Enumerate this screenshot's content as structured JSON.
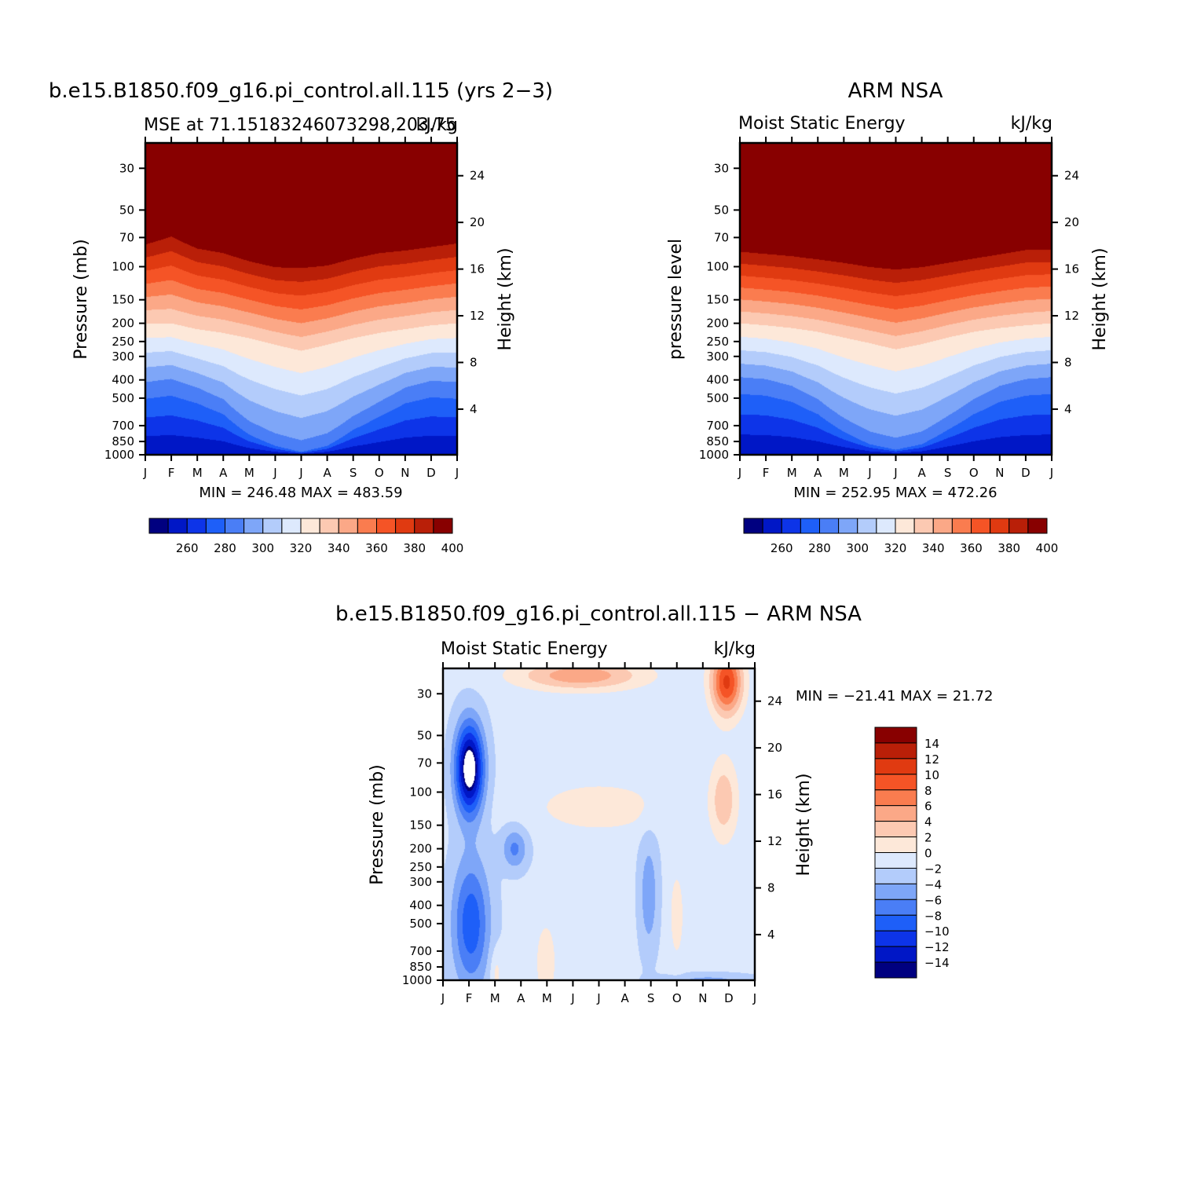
{
  "palette": {
    "full": [
      "#000080",
      "#0017c6",
      "#0d34e8",
      "#1e5ff8",
      "#4a7ef6",
      "#7ea6f8",
      "#b3ccfb",
      "#dde9fd",
      "#fde8d9",
      "#fcc9b2",
      "#fba887",
      "#fa7c4f",
      "#f55426",
      "#e03a11",
      "#b91f08",
      "#880000"
    ]
  },
  "months": [
    "J",
    "F",
    "M",
    "A",
    "M",
    "J",
    "J",
    "A",
    "S",
    "O",
    "N",
    "D",
    "J"
  ],
  "pressure_ticks": [
    "30",
    "50",
    "70",
    "100",
    "150",
    "200",
    "250",
    "300",
    "400",
    "500",
    "700",
    "850",
    "1000"
  ],
  "height_ticks": [
    "24",
    "20",
    "16",
    "12",
    "8",
    "4"
  ],
  "chart_data": [
    {
      "id": "model",
      "type": "heatmap",
      "title": "b.e15.B1850.f09_g16.pi_control.all.115 (yrs 2−3)",
      "subtitle_left": "MSE at 71.15183246073298,203.75",
      "subtitle_right": "kJ/kg",
      "ylabel_left": "Pressure (mb)",
      "ylabel_right": "Height (km)",
      "stats": "MIN =  246.48  MAX =  483.59",
      "colorbar_labels": [
        "260",
        "280",
        "300",
        "320",
        "340",
        "360",
        "380",
        "400"
      ],
      "levels_start": 250,
      "levels_step": 10,
      "upper_boundary_hPa": [
        65,
        58,
        68,
        72,
        80,
        86,
        86,
        84,
        77,
        72,
        70,
        67,
        64
      ],
      "transition_hPa": [
        200,
        200,
        215,
        225,
        240,
        260,
        280,
        260,
        240,
        225,
        215,
        205,
        200
      ],
      "surface_low_hPa": [
        450,
        430,
        480,
        560,
        750,
        880,
        960,
        880,
        700,
        580,
        480,
        440,
        450
      ]
    },
    {
      "id": "obs",
      "type": "heatmap",
      "title": "ARM NSA",
      "subtitle_left": "Moist Static Energy",
      "subtitle_right": "kJ/kg",
      "ylabel_left": "pressure level",
      "ylabel_right": "Height (km)",
      "stats": "MIN =  252.95  MAX =  472.26",
      "colorbar_labels": [
        "260",
        "280",
        "300",
        "320",
        "340",
        "360",
        "380",
        "400"
      ],
      "levels_start": 250,
      "levels_step": 10,
      "upper_boundary_hPa": [
        72,
        74,
        76,
        79,
        82,
        86,
        88,
        86,
        82,
        78,
        74,
        70,
        70
      ],
      "transition_hPa": [
        200,
        205,
        212,
        222,
        238,
        255,
        275,
        258,
        238,
        222,
        212,
        205,
        200
      ],
      "surface_low_hPa": [
        420,
        430,
        470,
        560,
        720,
        860,
        930,
        860,
        700,
        560,
        470,
        430,
        420
      ]
    },
    {
      "id": "diff",
      "type": "heatmap",
      "title": "b.e15.B1850.f09_g16.pi_control.all.115 − ARM NSA",
      "subtitle_left": "Moist Static Energy",
      "subtitle_right": "kJ/kg",
      "ylabel_left": "Pressure (mb)",
      "ylabel_right": "Height (km)",
      "stats": "MIN =  −21.41  MAX =   21.72",
      "colorbar_labels": [
        "14",
        "12",
        "10",
        "8",
        "6",
        "4",
        "2",
        "0",
        "−2",
        "−4",
        "−6",
        "−8",
        "−10",
        "−12",
        "−14"
      ],
      "levels_start": -16,
      "levels_step": 2,
      "value_range": [
        -21.41,
        21.72
      ]
    }
  ]
}
